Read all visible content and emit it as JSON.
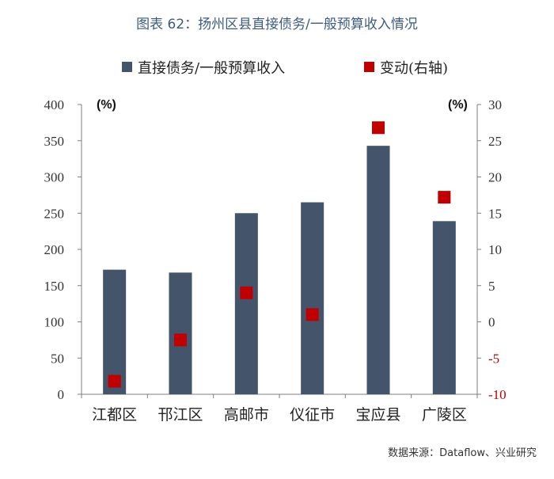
{
  "title": "图表 62：扬州区县直接债务/一般预算收入情况",
  "source": "数据来源：Dataflow、兴业研究",
  "colors": {
    "bar": "#44546a",
    "marker": "#c00000",
    "axis": "#7f7f7f",
    "title": "#3d5a80"
  },
  "chart_data": {
    "type": "bar",
    "categories": [
      "江都区",
      "邗江区",
      "高邮市",
      "仪征市",
      "宝应县",
      "广陵区"
    ],
    "series": [
      {
        "name": "直接债务/一般预算收入",
        "axis": "left",
        "kind": "bar",
        "values": [
          172,
          168,
          250,
          265,
          343,
          239
        ]
      },
      {
        "name": "变动(右轴)",
        "axis": "right",
        "kind": "scatter",
        "values": [
          -8.2,
          -2.5,
          4.0,
          1.0,
          26.8,
          17.2
        ]
      }
    ],
    "y_left": {
      "unit": "(%)",
      "ylim": [
        0,
        400
      ],
      "ticks": [
        0,
        50,
        100,
        150,
        200,
        250,
        300,
        350,
        400
      ]
    },
    "y_right": {
      "unit": "(%)",
      "ylim": [
        -10,
        30
      ],
      "ticks": [
        -10,
        -5,
        0,
        5,
        10,
        15,
        20,
        25,
        30
      ]
    },
    "legend": [
      "直接债务/一般预算收入",
      "变动(右轴)"
    ],
    "legend_position": "top",
    "grid": false
  }
}
